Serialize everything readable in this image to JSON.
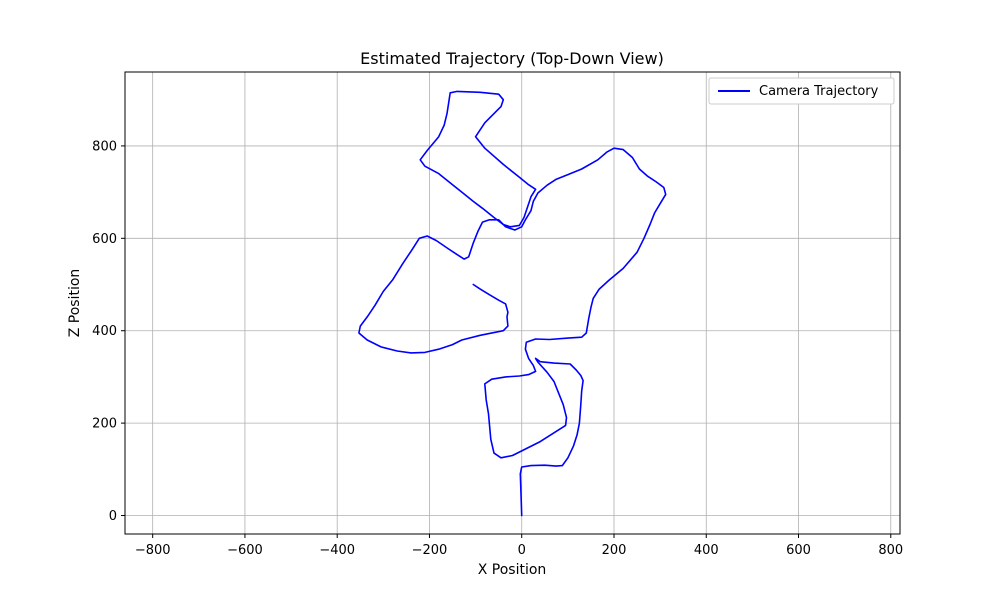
{
  "chart_data": {
    "type": "line",
    "title": "Estimated Trajectory (Top-Down View)",
    "xlabel": "X Position",
    "ylabel": "Z Position",
    "xlim": [
      -860,
      820
    ],
    "ylim": [
      -40,
      960
    ],
    "xticks": [
      -800,
      -600,
      -400,
      -200,
      0,
      200,
      400,
      600,
      800
    ],
    "yticks": [
      0,
      200,
      400,
      600,
      800
    ],
    "grid": true,
    "legend_position": "top-right",
    "series": [
      {
        "name": "Camera Trajectory",
        "color": "#0000ff",
        "points": [
          [
            0,
            0
          ],
          [
            -2,
            60
          ],
          [
            -3,
            90
          ],
          [
            0,
            105
          ],
          [
            20,
            108
          ],
          [
            50,
            109
          ],
          [
            75,
            107
          ],
          [
            88,
            108
          ],
          [
            100,
            125
          ],
          [
            112,
            150
          ],
          [
            120,
            175
          ],
          [
            125,
            200
          ],
          [
            128,
            240
          ],
          [
            130,
            270
          ],
          [
            133,
            292
          ],
          [
            128,
            303
          ],
          [
            118,
            315
          ],
          [
            105,
            328
          ],
          [
            70,
            330
          ],
          [
            40,
            333
          ],
          [
            30,
            340
          ],
          [
            35,
            332
          ],
          [
            55,
            310
          ],
          [
            70,
            290
          ],
          [
            80,
            265
          ],
          [
            90,
            240
          ],
          [
            97,
            212
          ],
          [
            95,
            195
          ],
          [
            40,
            160
          ],
          [
            -20,
            130
          ],
          [
            -45,
            125
          ],
          [
            -60,
            135
          ],
          [
            -67,
            165
          ],
          [
            -72,
            220
          ],
          [
            -77,
            250
          ],
          [
            -80,
            285
          ],
          [
            -65,
            295
          ],
          [
            -35,
            300
          ],
          [
            -5,
            302
          ],
          [
            15,
            305
          ],
          [
            30,
            312
          ],
          [
            25,
            325
          ],
          [
            15,
            340
          ],
          [
            8,
            360
          ],
          [
            10,
            375
          ],
          [
            30,
            382
          ],
          [
            60,
            381
          ],
          [
            100,
            384
          ],
          [
            130,
            386
          ],
          [
            140,
            395
          ],
          [
            145,
            425
          ],
          [
            150,
            450
          ],
          [
            155,
            470
          ],
          [
            168,
            490
          ],
          [
            190,
            510
          ],
          [
            220,
            535
          ],
          [
            250,
            570
          ],
          [
            265,
            600
          ],
          [
            278,
            630
          ],
          [
            288,
            655
          ],
          [
            300,
            675
          ],
          [
            312,
            695
          ],
          [
            308,
            710
          ],
          [
            292,
            722
          ],
          [
            272,
            735
          ],
          [
            255,
            750
          ],
          [
            240,
            775
          ],
          [
            220,
            792
          ],
          [
            200,
            795
          ],
          [
            185,
            787
          ],
          [
            165,
            770
          ],
          [
            130,
            750
          ],
          [
            100,
            738
          ],
          [
            75,
            728
          ],
          [
            55,
            715
          ],
          [
            35,
            698
          ],
          [
            25,
            680
          ],
          [
            20,
            660
          ],
          [
            8,
            640
          ],
          [
            0,
            625
          ],
          [
            -15,
            618
          ],
          [
            -35,
            625
          ],
          [
            -50,
            640
          ],
          [
            -70,
            640
          ],
          [
            -85,
            635
          ],
          [
            -95,
            615
          ],
          [
            -105,
            590
          ],
          [
            -115,
            560
          ],
          [
            -125,
            555
          ],
          [
            -145,
            568
          ],
          [
            -160,
            578
          ],
          [
            -185,
            595
          ],
          [
            -205,
            605
          ],
          [
            -222,
            600
          ],
          [
            -238,
            575
          ],
          [
            -258,
            545
          ],
          [
            -280,
            510
          ],
          [
            -300,
            485
          ],
          [
            -318,
            455
          ],
          [
            -335,
            430
          ],
          [
            -350,
            410
          ],
          [
            -353,
            395
          ],
          [
            -335,
            380
          ],
          [
            -305,
            365
          ],
          [
            -270,
            356
          ],
          [
            -240,
            352
          ],
          [
            -210,
            353
          ],
          [
            -180,
            360
          ],
          [
            -150,
            370
          ],
          [
            -130,
            380
          ],
          [
            -90,
            390
          ],
          [
            -40,
            400
          ],
          [
            -30,
            410
          ],
          [
            -32,
            430
          ],
          [
            -30,
            440
          ],
          [
            -35,
            458
          ],
          [
            -50,
            466
          ],
          [
            -70,
            478
          ],
          [
            -90,
            490
          ],
          [
            -105,
            500
          ]
        ]
      },
      {
        "name": "",
        "color": "#0000ff",
        "points": [
          [
            -5,
            628
          ],
          [
            5,
            645
          ],
          [
            20,
            690
          ],
          [
            30,
            706
          ],
          [
            15,
            716
          ],
          [
            -5,
            732
          ],
          [
            -40,
            760
          ],
          [
            -80,
            795
          ],
          [
            -100,
            820
          ],
          [
            -80,
            850
          ],
          [
            -60,
            870
          ],
          [
            -45,
            885
          ],
          [
            -40,
            900
          ],
          [
            -50,
            912
          ],
          [
            -90,
            916
          ],
          [
            -140,
            918
          ],
          [
            -155,
            915
          ],
          [
            -158,
            895
          ],
          [
            -162,
            870
          ],
          [
            -168,
            845
          ],
          [
            -180,
            820
          ],
          [
            -205,
            790
          ],
          [
            -220,
            770
          ],
          [
            -210,
            756
          ],
          [
            -180,
            740
          ],
          [
            -155,
            720
          ],
          [
            -130,
            700
          ],
          [
            -105,
            680
          ],
          [
            -85,
            665
          ],
          [
            -60,
            645
          ],
          [
            -40,
            630
          ],
          [
            -25,
            625
          ],
          [
            -5,
            628
          ]
        ]
      }
    ]
  }
}
